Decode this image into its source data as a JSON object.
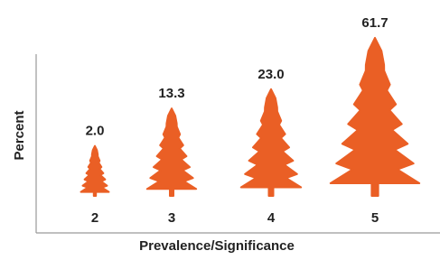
{
  "chart_data": {
    "type": "pictogram",
    "x_label": "Prevalence/Significance",
    "y_label": "Percent",
    "categories": [
      "2",
      "3",
      "4",
      "5"
    ],
    "values": [
      2.0,
      13.3,
      23.0,
      61.7
    ],
    "value_labels": [
      "2.0",
      "13.3",
      "23.0",
      "61.7"
    ],
    "color": "#ea5f25"
  }
}
